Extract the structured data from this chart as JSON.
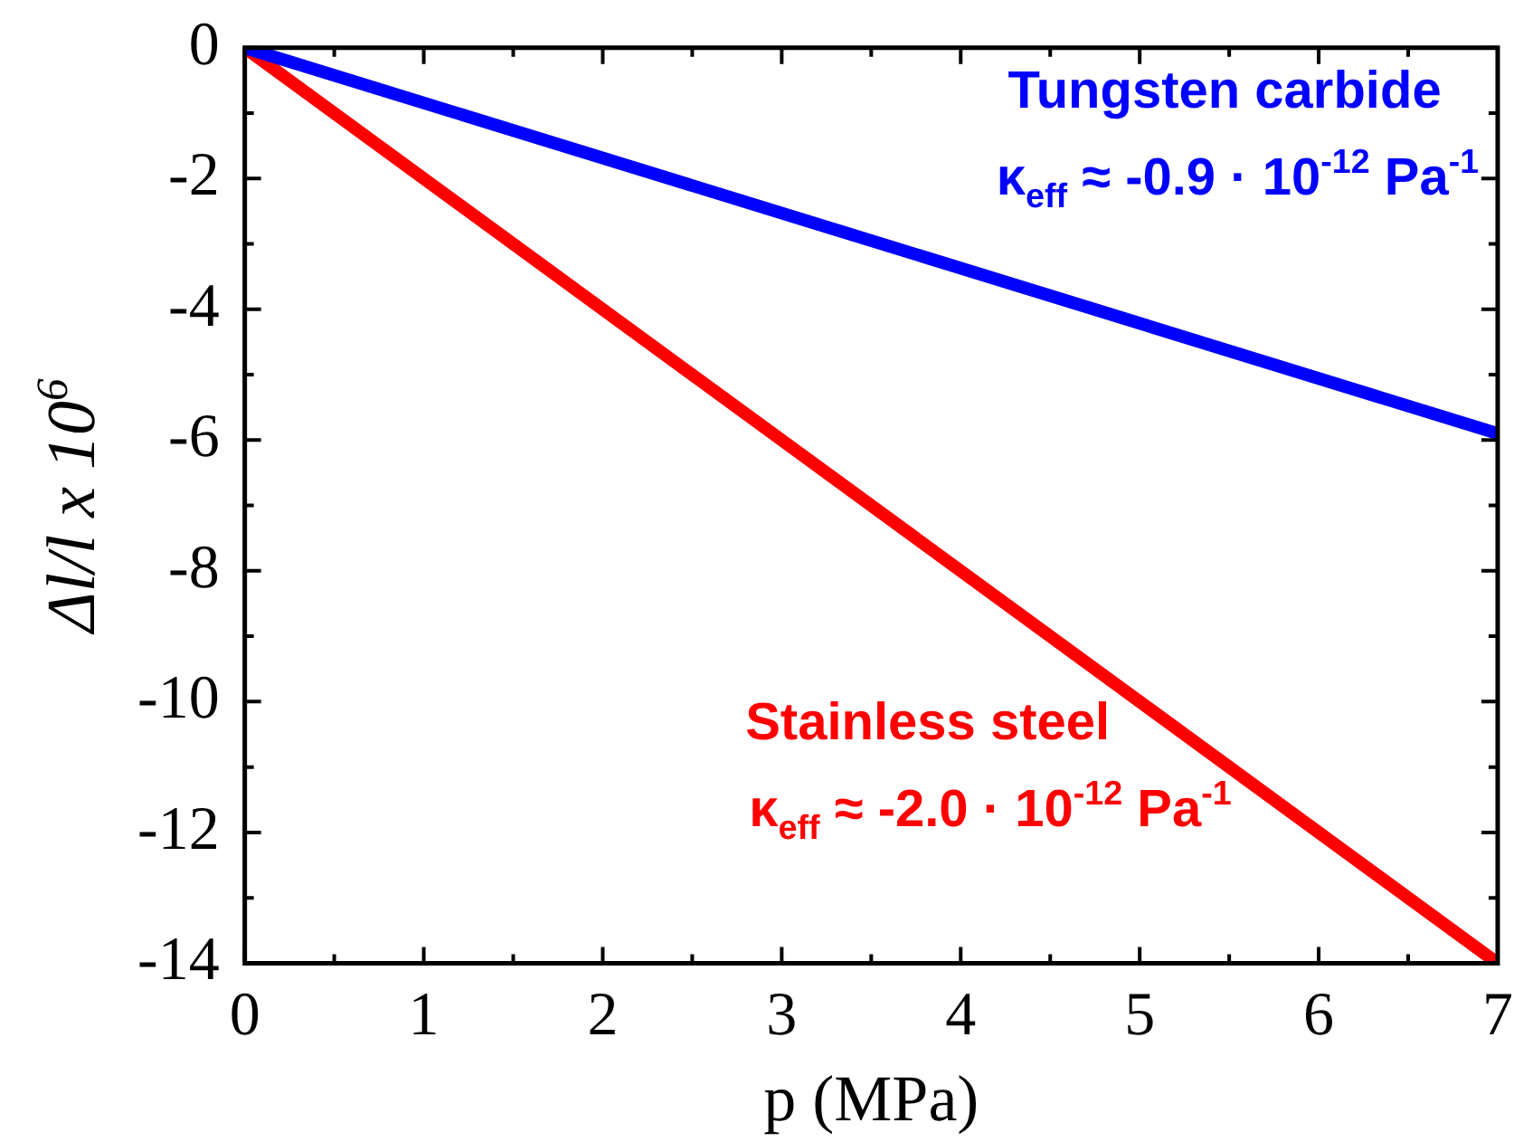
{
  "chart_data": {
    "type": "line",
    "xlabel": "p (MPa)",
    "ylabel": "Δl/l x 10$^{6}$",
    "x": [
      0,
      7
    ],
    "series": [
      {
        "name": "Tungsten carbide",
        "color": "#0000ff",
        "values": [
          0,
          -5.9
        ]
      },
      {
        "name": "Stainless steel",
        "color": "#ff0000",
        "values": [
          0,
          -14
        ]
      }
    ],
    "annotations": [
      "κ$_{eff}$ ≈ -0.9 · 10$^{-12}$ Pa$^{-1}$",
      "κ$_{eff}$ ≈ -2.0 · 10$^{-12}$ Pa$^{-1}$"
    ],
    "xlim": [
      0,
      7
    ],
    "xticks": [
      0,
      1,
      2,
      3,
      4,
      5,
      6,
      7
    ],
    "ylim": [
      -14,
      0
    ],
    "yticks": [
      -14,
      -12,
      -10,
      -8,
      -6,
      -4,
      -2,
      0
    ],
    "legend": false,
    "grid": false,
    "marker": "none",
    "line_style": "solid"
  }
}
